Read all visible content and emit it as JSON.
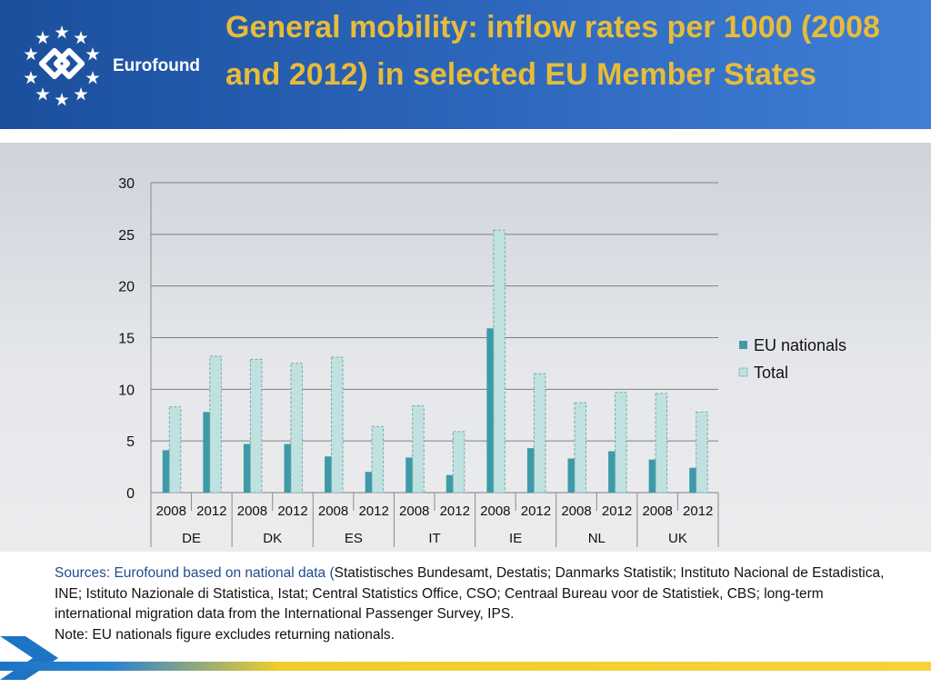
{
  "header": {
    "title": "General mobility: inflow rates per 1000 (2008 and 2012) in selected EU Member States",
    "logo_text": "Eurofound"
  },
  "colors": {
    "eu_nationals": "#3d9aa8",
    "total": "#bfe2e1",
    "title": "#e8bb39"
  },
  "chart_data": {
    "type": "bar",
    "title": "General mobility: inflow rates per 1000 (2008 and 2012) in selected EU Member States",
    "countries": [
      "DE",
      "DK",
      "ES",
      "IT",
      "IE",
      "NL",
      "UK"
    ],
    "years": [
      "2008",
      "2012"
    ],
    "categories": [
      "DE 2008",
      "DE 2012",
      "DK 2008",
      "DK 2012",
      "ES 2008",
      "ES 2012",
      "IT 2008",
      "IT 2012",
      "IE 2008",
      "IE 2012",
      "NL 2008",
      "NL 2012",
      "UK 2008",
      "UK 2012"
    ],
    "series": [
      {
        "name": "EU nationals",
        "values": [
          4.1,
          7.8,
          4.7,
          4.7,
          3.5,
          2.0,
          3.4,
          1.7,
          15.9,
          4.3,
          3.3,
          4.0,
          3.2,
          2.4
        ]
      },
      {
        "name": "Total",
        "values": [
          8.3,
          13.2,
          12.9,
          12.5,
          13.1,
          6.4,
          8.4,
          5.9,
          25.4,
          11.5,
          8.7,
          9.7,
          9.6,
          7.8
        ]
      }
    ],
    "y_ticks": [
      "0",
      "5",
      "10",
      "15",
      "20",
      "25",
      "30"
    ],
    "ylim": [
      0,
      30
    ],
    "xlabel": "",
    "ylabel": "",
    "legend_position": "right",
    "grid": true
  },
  "notes": {
    "sources_lead": "Sources: Eurofound based on national data (",
    "sources_rest": "Statistisches Bundesamt, Destatis; Danmarks Statistik; Instituto Nacional de Estadistica, INE; Istituto Nazionale di Statistica, Istat; Central Statistics Office, CSO; Centraal Bureau voor de Statistiek, CBS; long-term international migration data from the International Passenger Survey, IPS.",
    "note": "Note: EU nationals figure excludes returning nationals."
  }
}
